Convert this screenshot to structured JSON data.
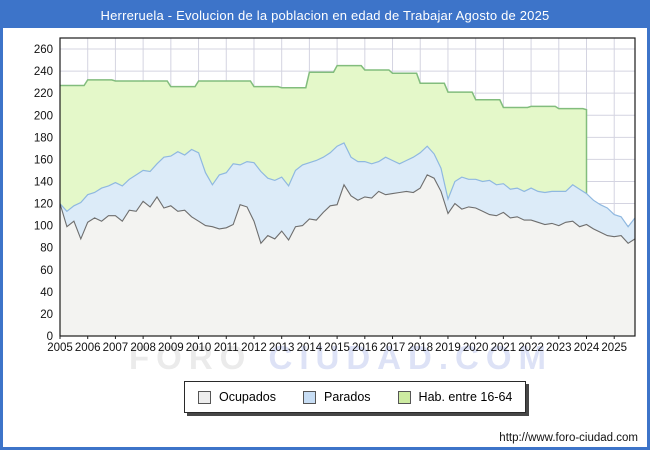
{
  "titlebar": {
    "title": "Herreruela - Evolucion de la poblacion en edad de Trabajar Agosto de 2025",
    "bg": "#3d74c9",
    "text_color": "#ffffff"
  },
  "watermark": {
    "part1": "FORO",
    "part2": "CIUDAD.COM"
  },
  "footer": {
    "url": "http://www.foro-ciudad.com"
  },
  "legend": {
    "items": [
      {
        "label": "Ocupados",
        "swatch": "#ededed"
      },
      {
        "label": "Parados",
        "swatch": "#c7ddf4"
      },
      {
        "label": "Hab. entre 16-64",
        "swatch": "#cdeba1"
      }
    ]
  },
  "chart_data": {
    "type": "area",
    "title": "Herreruela - Evolucion de la poblacion en edad de Trabajar Agosto de 2025",
    "xlabel": "",
    "ylabel": "",
    "grid": true,
    "legend_position": "bottom",
    "xlim": [
      2005,
      2025.75
    ],
    "ylim": [
      0,
      270
    ],
    "x_ticks": [
      2005,
      2006,
      2007,
      2008,
      2009,
      2010,
      2011,
      2012,
      2013,
      2014,
      2015,
      2016,
      2017,
      2018,
      2019,
      2020,
      2021,
      2022,
      2023,
      2024,
      2025
    ],
    "y_ticks": [
      0,
      20,
      40,
      60,
      80,
      100,
      120,
      140,
      160,
      180,
      200,
      220,
      240,
      260
    ],
    "x_start": 2005,
    "x_step": 0.25,
    "colors": {
      "grid": "#d4d4e1",
      "frame": "#1c1c1c",
      "tick_text": "#111111",
      "ocupados_line": "#6e6e6e",
      "ocupados_fill": "#f3f3f1",
      "parados_line": "#8fb8e0",
      "parados_fill": "#dcebf8",
      "hab_line": "#82bd7d",
      "hab_fill": "#e4f8c9"
    },
    "series": [
      {
        "name": "Ocupados",
        "values": [
          120,
          99,
          104,
          88,
          103,
          107,
          104,
          109,
          109,
          104,
          114,
          113,
          122,
          117,
          126,
          116,
          118,
          113,
          114,
          108,
          104,
          100,
          99,
          97,
          98,
          101,
          119,
          117,
          104,
          84,
          91,
          88,
          95,
          87,
          99,
          100,
          106,
          105,
          112,
          118,
          119,
          137,
          127,
          123,
          126,
          125,
          131,
          128,
          129,
          130,
          131,
          130,
          134,
          146,
          143,
          131,
          111,
          120,
          115,
          117,
          116,
          113,
          110,
          109,
          112,
          107,
          108,
          105,
          105,
          103,
          101,
          102,
          100,
          103,
          104,
          99,
          101,
          97,
          94,
          91,
          90,
          91,
          84,
          88
        ]
      },
      {
        "name": "Parados",
        "note": "values are the cumulative upper boundary of the Parados band (Ocupados + Parados)",
        "values": [
          120,
          113,
          118,
          121,
          128,
          130,
          134,
          136,
          139,
          136,
          142,
          146,
          150,
          149,
          156,
          162,
          163,
          167,
          164,
          169,
          166,
          148,
          137,
          146,
          148,
          156,
          155,
          158,
          157,
          149,
          143,
          141,
          144,
          136,
          150,
          155,
          157,
          159,
          162,
          166,
          172,
          175,
          162,
          158,
          158,
          156,
          158,
          162,
          159,
          156,
          159,
          162,
          166,
          172,
          165,
          152,
          124,
          140,
          144,
          142,
          142,
          140,
          141,
          137,
          138,
          133,
          134,
          131,
          134,
          131,
          130,
          131,
          131,
          131,
          137,
          133,
          129,
          123,
          119,
          116,
          110,
          108,
          99,
          107
        ]
      },
      {
        "name": "Hab. entre 16-64",
        "note": "annual step series, ends at 2024",
        "x_years": [
          2005,
          2006,
          2007,
          2008,
          2009,
          2010,
          2011,
          2012,
          2013,
          2014,
          2015,
          2016,
          2017,
          2018,
          2019,
          2020,
          2021,
          2022,
          2023,
          2024
        ],
        "values": [
          227,
          232,
          231,
          231,
          226,
          231,
          231,
          226,
          225,
          239,
          245,
          241,
          238,
          229,
          221,
          214,
          207,
          208,
          206,
          205
        ]
      }
    ]
  }
}
